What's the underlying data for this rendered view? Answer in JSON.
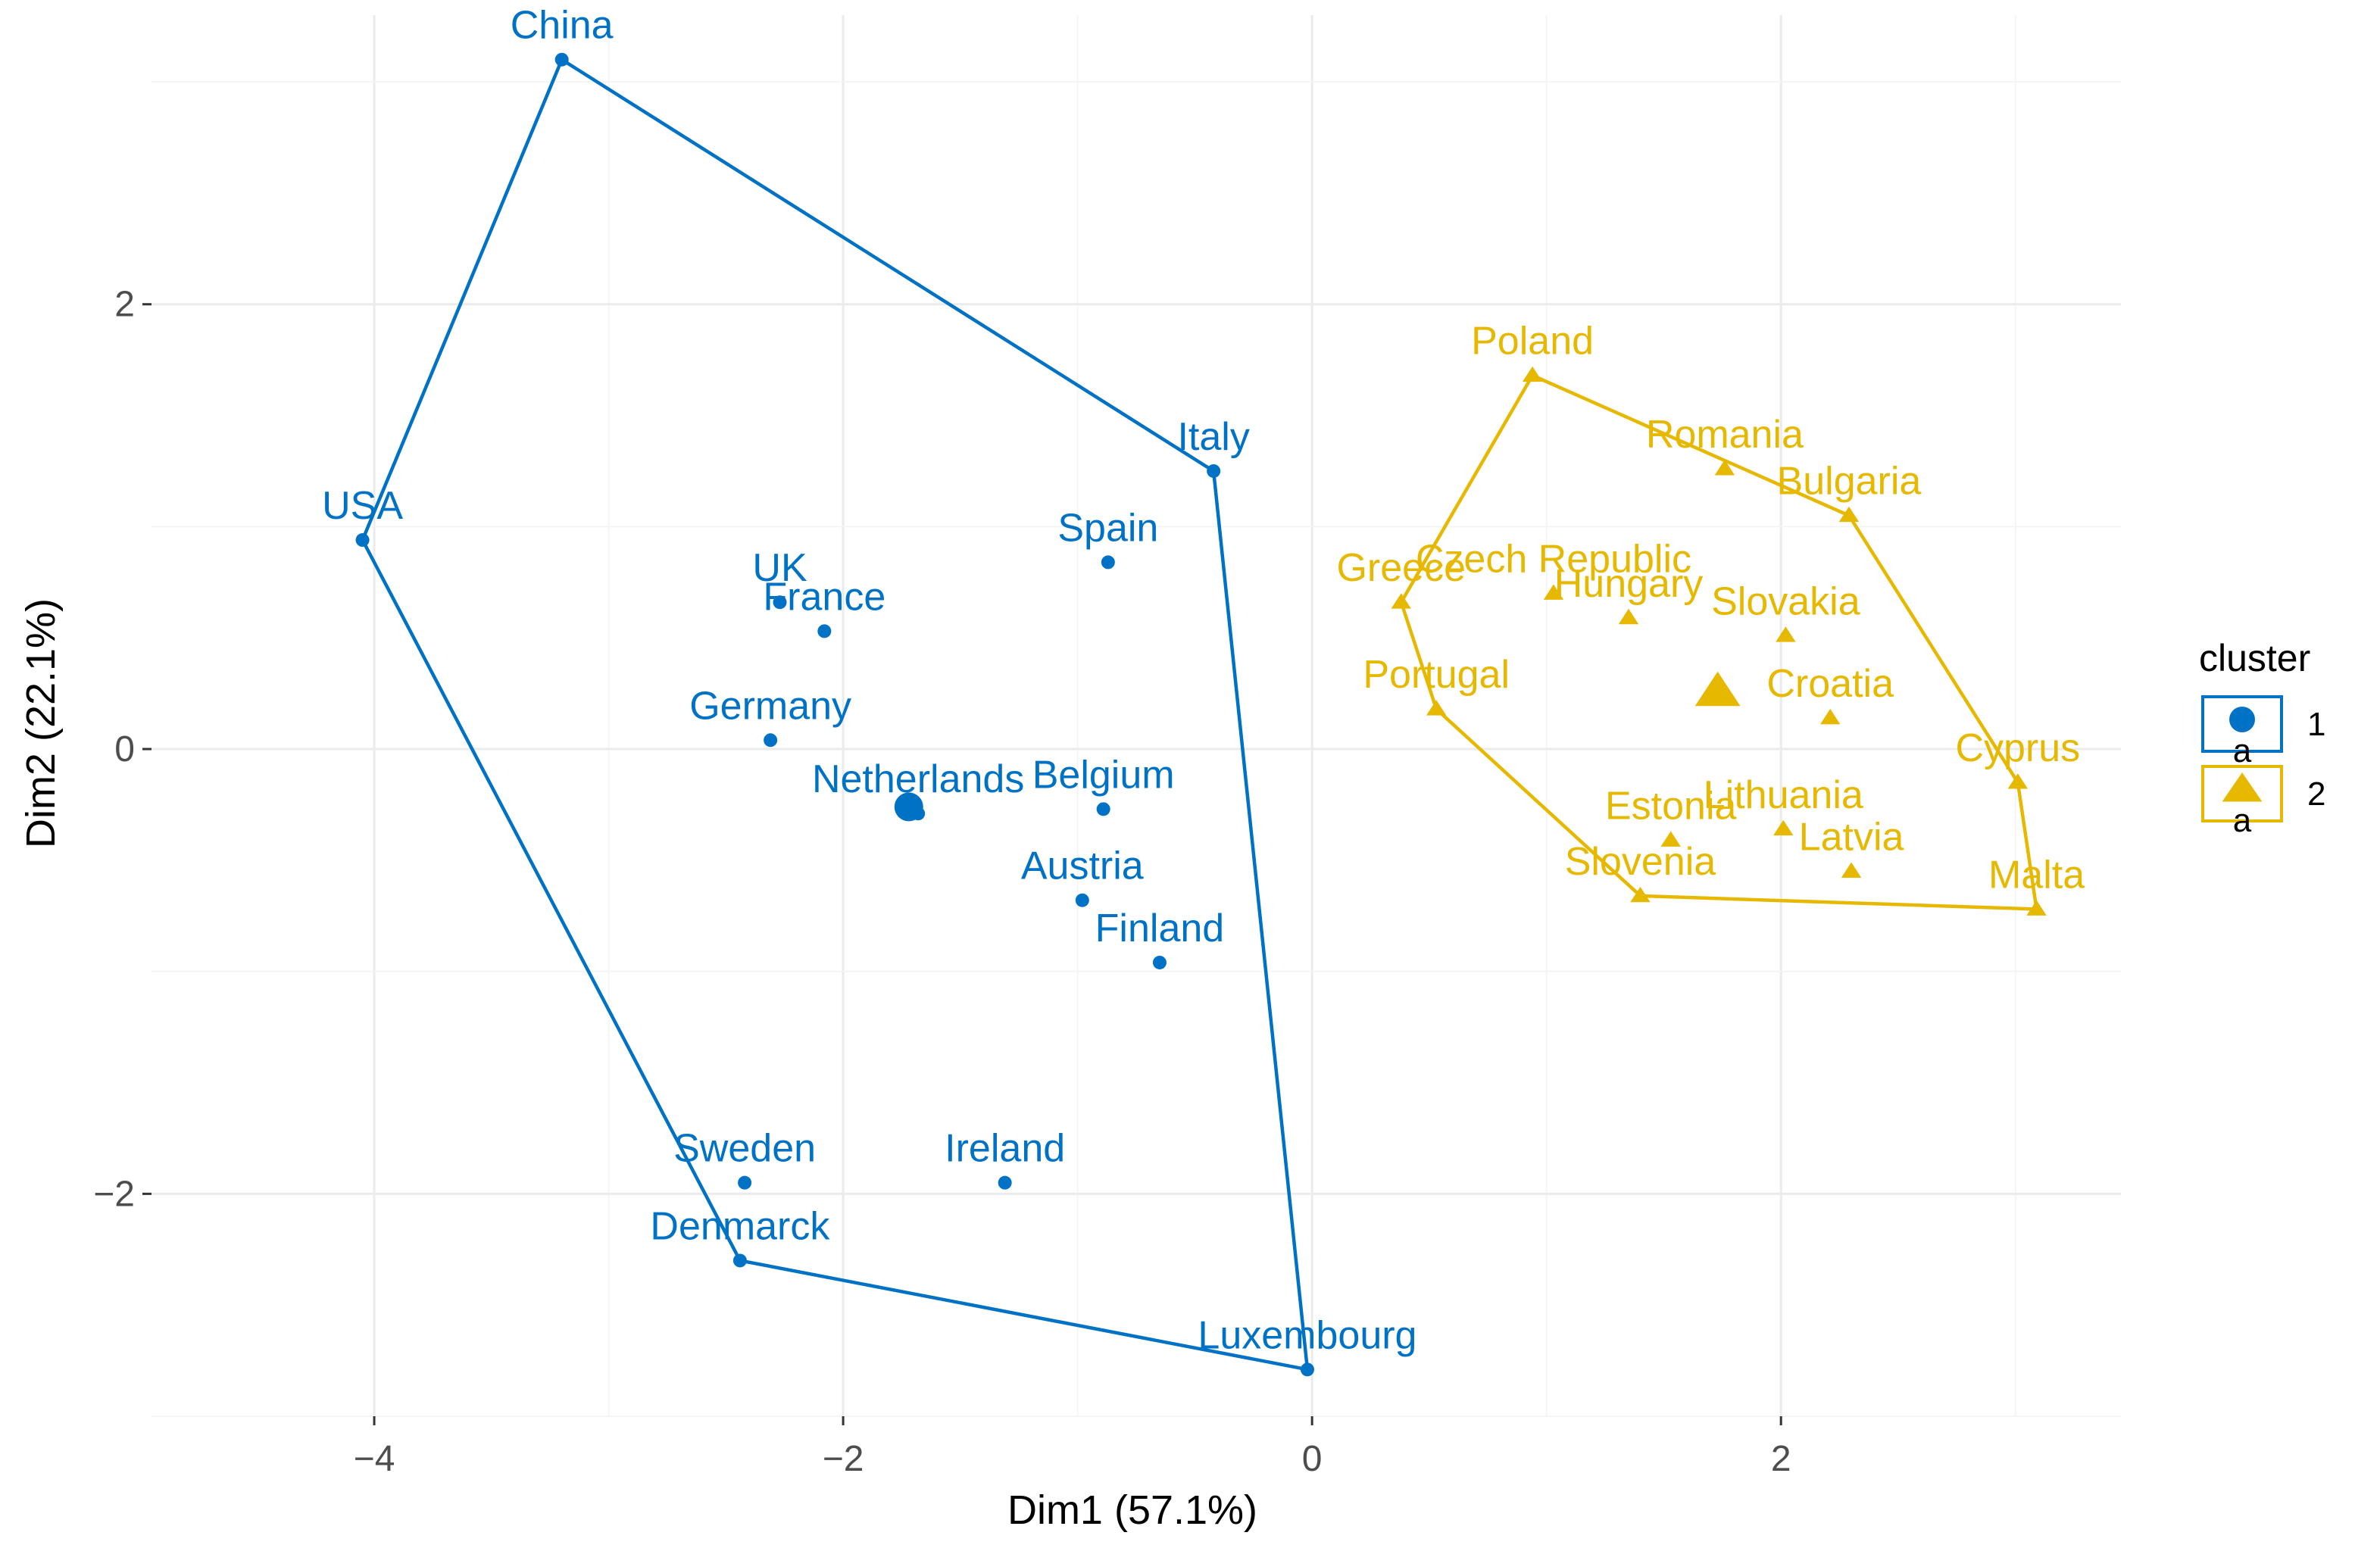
{
  "chart_data": {
    "type": "scatter",
    "xlabel": "Dim1 (57.1%)",
    "ylabel": "Dim2 (22.1%)",
    "xlim": [
      -4.95,
      3.45
    ],
    "ylim": [
      -3.0,
      3.3
    ],
    "x_ticks": [
      -4,
      -2,
      0,
      2
    ],
    "x_tick_labels": [
      "−4",
      "−2",
      "0",
      "2"
    ],
    "y_ticks": [
      -2,
      0,
      2
    ],
    "y_tick_labels": [
      "−2",
      "0",
      "2"
    ],
    "grid": true,
    "legend": {
      "title": "cluster",
      "position": "right",
      "glyph_text": "a"
    },
    "series": [
      {
        "name": "1",
        "color": "#0072c6",
        "marker": "circle",
        "hull": [
          "USA",
          "China",
          "Italy",
          "Luxembourg",
          "Denmarck"
        ],
        "center": {
          "x": -1.72,
          "y": -0.26
        },
        "points": [
          {
            "label": "China",
            "x": -3.2,
            "y": 3.1
          },
          {
            "label": "USA",
            "x": -4.05,
            "y": 0.94
          },
          {
            "label": "UK",
            "x": -2.27,
            "y": 0.66
          },
          {
            "label": "France",
            "x": -2.08,
            "y": 0.53
          },
          {
            "label": "Germany",
            "x": -2.31,
            "y": 0.04
          },
          {
            "label": "Netherlands",
            "x": -1.68,
            "y": -0.29
          },
          {
            "label": "Belgium",
            "x": -0.89,
            "y": -0.27
          },
          {
            "label": "Spain",
            "x": -0.87,
            "y": 0.84
          },
          {
            "label": "Italy",
            "x": -0.42,
            "y": 1.25
          },
          {
            "label": "Austria",
            "x": -0.98,
            "y": -0.68
          },
          {
            "label": "Finland",
            "x": -0.65,
            "y": -0.96
          },
          {
            "label": "Sweden",
            "x": -2.42,
            "y": -1.95
          },
          {
            "label": "Ireland",
            "x": -1.31,
            "y": -1.95
          },
          {
            "label": "Denmarck",
            "x": -2.44,
            "y": -2.3
          },
          {
            "label": "Luxembourg",
            "x": -0.02,
            "y": -2.79
          }
        ]
      },
      {
        "name": "2",
        "color": "#e6b800",
        "marker": "triangle",
        "hull": [
          "Poland",
          "Bulgaria",
          "Cyprus",
          "Malta",
          "Slovenia",
          "Portugal",
          "Greece"
        ],
        "center": {
          "x": 1.73,
          "y": 0.26
        },
        "points": [
          {
            "label": "Poland",
            "x": 0.94,
            "y": 1.68
          },
          {
            "label": "Romania",
            "x": 1.76,
            "y": 1.26
          },
          {
            "label": "Bulgaria",
            "x": 2.29,
            "y": 1.05
          },
          {
            "label": "Czech Republic",
            "x": 1.03,
            "y": 0.7
          },
          {
            "label": "Greece",
            "x": 0.38,
            "y": 0.66
          },
          {
            "label": "Hungary",
            "x": 1.35,
            "y": 0.59
          },
          {
            "label": "Slovakia",
            "x": 2.02,
            "y": 0.51
          },
          {
            "label": "Portugal",
            "x": 0.53,
            "y": 0.18
          },
          {
            "label": "Croatia",
            "x": 2.21,
            "y": 0.14
          },
          {
            "label": "Cyprus",
            "x": 3.01,
            "y": -0.15
          },
          {
            "label": "Estonia",
            "x": 1.53,
            "y": -0.41
          },
          {
            "label": "Lithuania",
            "x": 2.01,
            "y": -0.36
          },
          {
            "label": "Latvia",
            "x": 2.3,
            "y": -0.55
          },
          {
            "label": "Slovenia",
            "x": 1.4,
            "y": -0.66
          },
          {
            "label": "Malta",
            "x": 3.09,
            "y": -0.72
          }
        ]
      }
    ]
  }
}
